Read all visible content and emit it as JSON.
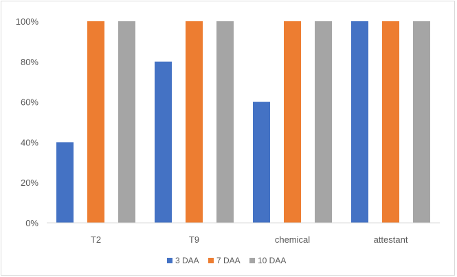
{
  "chart_data": {
    "type": "bar",
    "categories": [
      "T2",
      "T9",
      "chemical",
      "attestant"
    ],
    "series": [
      {
        "name": "3 DAA",
        "color": "#4472c4",
        "values": [
          40,
          80,
          60,
          100
        ]
      },
      {
        "name": "7 DAA",
        "color": "#ed7d31",
        "values": [
          100,
          100,
          100,
          100
        ]
      },
      {
        "name": "10 DAA",
        "color": "#a5a5a5",
        "values": [
          100,
          100,
          100,
          100
        ]
      }
    ],
    "yticks": [
      "0%",
      "20%",
      "40%",
      "60%",
      "80%",
      "100%"
    ],
    "ylim": [
      0,
      100
    ],
    "ylabel": "",
    "xlabel": "",
    "title": "",
    "grid": false,
    "legend_position": "bottom"
  }
}
